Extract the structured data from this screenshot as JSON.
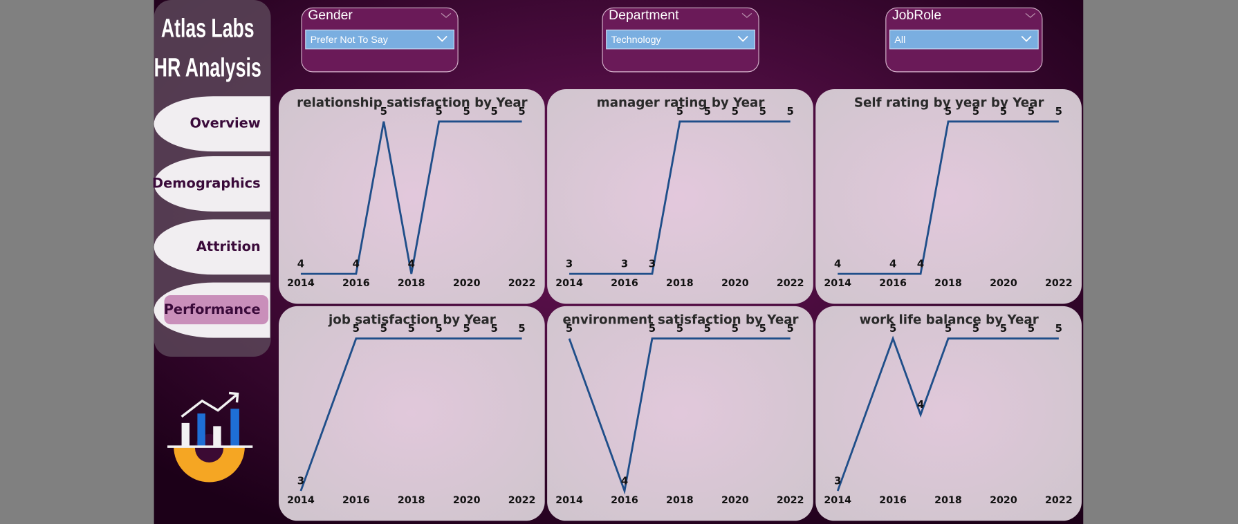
{
  "sidebar": {
    "title_lines": [
      "Atlas Labs",
      "HR Analysis"
    ],
    "nav": [
      "Overview",
      "Demographics",
      "Attrition",
      "Performance"
    ],
    "active_index": 3
  },
  "filters": [
    {
      "label": "Gender",
      "value": "Prefer Not To Say"
    },
    {
      "label": "Department",
      "value": "Technology"
    },
    {
      "label": "JobRole",
      "value": "All"
    }
  ],
  "chart_data": [
    {
      "type": "line",
      "title": "relationship satisfaction by Year",
      "x": [
        2014,
        2016,
        2017,
        2018,
        2019,
        2020,
        2021,
        2022
      ],
      "series": [
        {
          "name": "relationship satisfaction",
          "color": "#1f4e89",
          "values": [
            4,
            4,
            5,
            4,
            5,
            5,
            5,
            5
          ]
        }
      ],
      "xlim": [
        2014,
        2022
      ],
      "xticks": [
        2014,
        2016,
        2018,
        2020,
        2022
      ],
      "ylim": [
        4,
        5
      ]
    },
    {
      "type": "line",
      "title": "manager rating by Year",
      "x": [
        2014,
        2016,
        2017,
        2018,
        2019,
        2020,
        2021,
        2022
      ],
      "series": [
        {
          "name": "manager rating",
          "color": "#1f4e89",
          "values": [
            3,
            3,
            3,
            5,
            5,
            5,
            5,
            5
          ]
        }
      ],
      "xlim": [
        2014,
        2022
      ],
      "xticks": [
        2014,
        2016,
        2018,
        2020,
        2022
      ],
      "ylim": [
        3,
        5
      ]
    },
    {
      "type": "line",
      "title": "Self rating by year by Year",
      "x": [
        2014,
        2016,
        2017,
        2018,
        2019,
        2020,
        2021,
        2022
      ],
      "series": [
        {
          "name": "Self rating",
          "color": "#1f4e89",
          "values": [
            4,
            4,
            4,
            5,
            5,
            5,
            5,
            5
          ]
        }
      ],
      "xlim": [
        2014,
        2022
      ],
      "xticks": [
        2014,
        2016,
        2018,
        2020,
        2022
      ],
      "ylim": [
        4,
        5
      ]
    },
    {
      "type": "line",
      "title": "job satisfaction by Year",
      "x": [
        2014,
        2016,
        2017,
        2018,
        2019,
        2020,
        2021,
        2022
      ],
      "series": [
        {
          "name": "job satisfaction",
          "color": "#1f4e89",
          "values": [
            3,
            5,
            5,
            5,
            5,
            5,
            5,
            5
          ]
        }
      ],
      "xlim": [
        2014,
        2022
      ],
      "xticks": [
        2014,
        2016,
        2018,
        2020,
        2022
      ],
      "ylim": [
        3,
        5
      ]
    },
    {
      "type": "line",
      "title": "environment satisfaction by Year",
      "x": [
        2014,
        2016,
        2017,
        2018,
        2019,
        2020,
        2021,
        2022
      ],
      "series": [
        {
          "name": "environment satisfaction",
          "color": "#1f4e89",
          "values": [
            5,
            4,
            5,
            5,
            5,
            5,
            5,
            5
          ]
        }
      ],
      "xlim": [
        2014,
        2022
      ],
      "xticks": [
        2014,
        2016,
        2018,
        2020,
        2022
      ],
      "ylim": [
        4,
        5
      ]
    },
    {
      "type": "line",
      "title": "work life balance by Year",
      "x": [
        2014,
        2016,
        2017,
        2018,
        2019,
        2020,
        2021,
        2022
      ],
      "series": [
        {
          "name": "work life balance",
          "color": "#1f4e89",
          "values": [
            3,
            5,
            4,
            5,
            5,
            5,
            5,
            5
          ]
        }
      ],
      "xlim": [
        2014,
        2022
      ],
      "xticks": [
        2014,
        2016,
        2018,
        2020,
        2022
      ],
      "ylim": [
        3,
        5
      ]
    }
  ]
}
